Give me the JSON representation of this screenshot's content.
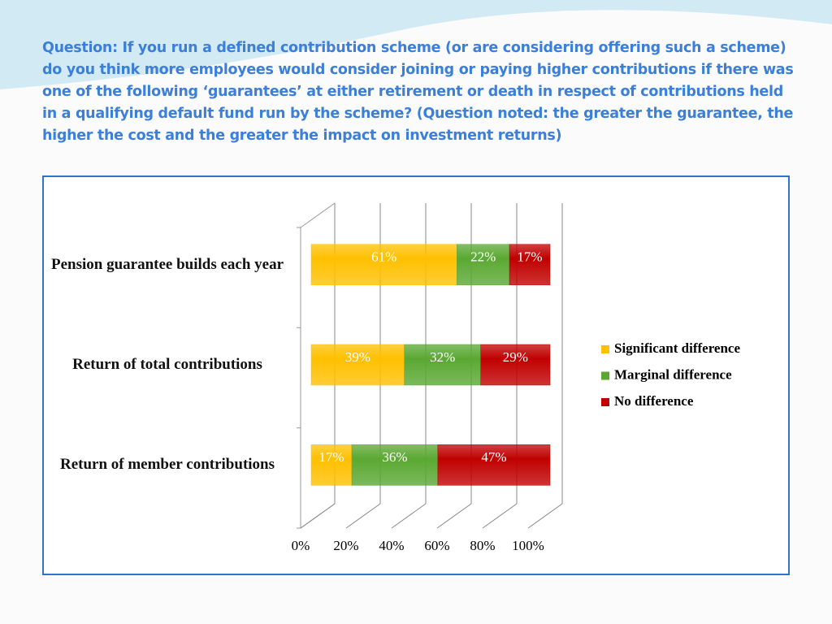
{
  "chart_data": {
    "type": "stacked-bar-horizontal",
    "title": "Question: If you run a defined contribution scheme (or are considering offering such a scheme) do you think more employees would consider joining or paying higher contributions if there was one of the following ‘guarantees’ at either retirement or death in respect of contributions held in a qualifying default fund run by the scheme? (Question noted: the greater the guarantee, the higher the cost and the greater the impact on investment returns)",
    "categories": [
      "Pension guarantee builds each year",
      "Return of total contributions",
      "Return of member contributions"
    ],
    "series": [
      {
        "name": "Significant difference",
        "color": "#ffc000",
        "values": [
          61,
          39,
          17
        ],
        "value_labels": [
          "61%",
          "39%",
          "17%"
        ]
      },
      {
        "name": "Marginal difference",
        "color": "#5aa832",
        "values": [
          22,
          32,
          36
        ],
        "value_labels": [
          "22%",
          "32%",
          "36%"
        ]
      },
      {
        "name": "No difference",
        "color": "#c00000",
        "values": [
          17,
          29,
          47
        ],
        "value_labels": [
          "17%",
          "29%",
          "47%"
        ]
      }
    ],
    "xlim": [
      0,
      100
    ],
    "xticks": [
      {
        "value": 0,
        "label": "0%"
      },
      {
        "value": 20,
        "label": "20%"
      },
      {
        "value": 40,
        "label": "40%"
      },
      {
        "value": 60,
        "label": "60%"
      },
      {
        "value": 80,
        "label": "80%"
      },
      {
        "value": 100,
        "label": "100%"
      }
    ],
    "grid": true,
    "legend": "right"
  }
}
